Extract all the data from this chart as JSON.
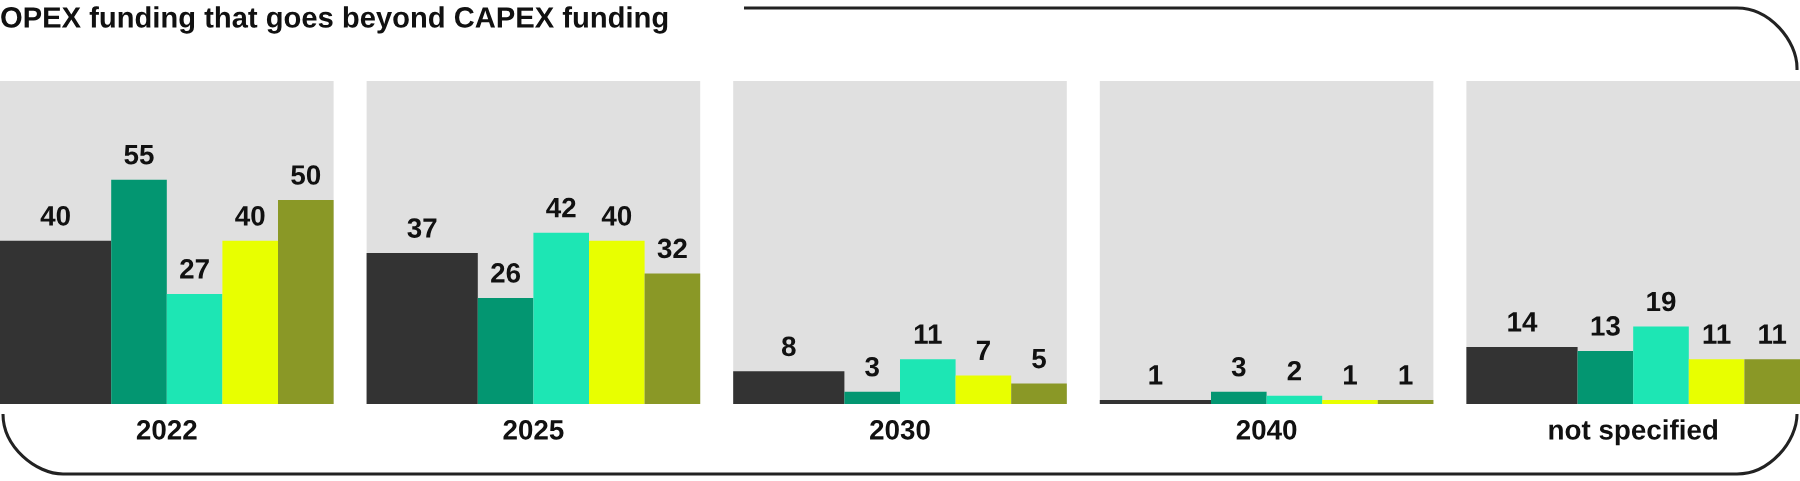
{
  "chart_data": {
    "type": "bar",
    "title": "OPEX funding that goes beyond CAPEX funding",
    "categories": [
      "2022",
      "2025",
      "2030",
      "2040",
      "not specified"
    ],
    "series": [
      {
        "color": "#333333",
        "values": [
          40,
          37,
          8,
          1,
          14
        ]
      },
      {
        "color": "#039671",
        "values": [
          55,
          26,
          3,
          3,
          13
        ]
      },
      {
        "color": "#1de6b4",
        "values": [
          27,
          42,
          11,
          2,
          19
        ]
      },
      {
        "color": "#e8ff00",
        "values": [
          40,
          40,
          7,
          1,
          11
        ]
      },
      {
        "color": "#8a9826",
        "values": [
          50,
          32,
          5,
          1,
          11
        ]
      }
    ],
    "bands": [
      {
        "axis": "x",
        "from": "2022",
        "to": "2022",
        "color": "#e0e0e0"
      },
      {
        "axis": "x",
        "from": "2025",
        "to": "2025",
        "color": "#e0e0e0"
      },
      {
        "axis": "x",
        "from": "2030",
        "to": "2030",
        "color": "#e0e0e0"
      },
      {
        "axis": "x",
        "from": "2040",
        "to": "2040",
        "color": "#e0e0e0"
      },
      {
        "axis": "x",
        "from": "not specified",
        "to": "not specified",
        "color": "#e0e0e0"
      }
    ],
    "data_labels": true
  }
}
